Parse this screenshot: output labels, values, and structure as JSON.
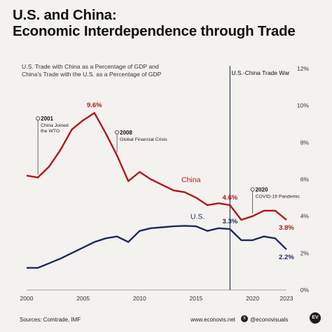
{
  "title_line1": "U.S. and China:",
  "title_line2": "Economic Interdependence through Trade",
  "subtitle_line1": "U.S. Trade with China as a Percentage of GDP and",
  "subtitle_line2": "China's Trade with the U.S. as a Percentage of GDP",
  "footer": {
    "source": "Sources: Comtrade, IMF",
    "site": "www.econovis.net",
    "social": "@econovisuals",
    "x_icon": "X",
    "logo": "EV"
  },
  "chart_data": {
    "type": "line",
    "x": [
      2000,
      2001,
      2002,
      2003,
      2004,
      2005,
      2006,
      2007,
      2008,
      2009,
      2010,
      2011,
      2012,
      2013,
      2014,
      2015,
      2016,
      2017,
      2018,
      2019,
      2020,
      2021,
      2022,
      2023
    ],
    "series": [
      {
        "name": "China",
        "color": "#b3141c",
        "values": [
          6.2,
          6.1,
          6.7,
          7.6,
          8.7,
          9.2,
          9.6,
          8.5,
          7.3,
          5.9,
          6.4,
          6.0,
          5.7,
          5.4,
          5.3,
          5.0,
          4.6,
          4.7,
          4.6,
          3.8,
          4.0,
          4.3,
          4.3,
          3.8
        ]
      },
      {
        "name": "U.S.",
        "color": "#1a2a5e",
        "values": [
          1.2,
          1.2,
          1.45,
          1.7,
          2.0,
          2.3,
          2.6,
          2.8,
          2.9,
          2.6,
          3.2,
          3.35,
          3.4,
          3.45,
          3.48,
          3.45,
          3.2,
          3.35,
          3.3,
          2.7,
          2.7,
          2.9,
          2.8,
          2.2
        ]
      }
    ],
    "ylim": [
      0,
      12
    ],
    "yticks": [
      "0%",
      "2%",
      "4%",
      "6%",
      "8%",
      "10%",
      "12%"
    ],
    "xticks": [
      "2000",
      "2005",
      "2010",
      "2015",
      "2020",
      "2023"
    ],
    "xtick_values": [
      2000,
      2005,
      2010,
      2015,
      2020,
      2023
    ],
    "grid": false,
    "trade_war_label": "U.S.-China Trade War",
    "trade_war_year": 2018,
    "value_labels": [
      {
        "series": 0,
        "year": 2006,
        "text": "9.6%"
      },
      {
        "series": 0,
        "year": 2018,
        "text": "4.6%"
      },
      {
        "series": 0,
        "year": 2023,
        "text": "3.8%"
      },
      {
        "series": 1,
        "year": 2018,
        "text": "3.3%"
      },
      {
        "series": 1,
        "year": 2023,
        "text": "2.2%"
      }
    ],
    "series_labels": [
      {
        "series": 0,
        "text": "China"
      },
      {
        "series": 1,
        "text": "U.S."
      }
    ],
    "annotations": [
      {
        "year": 2001,
        "value": 9.3,
        "label": "2001",
        "desc1": "China Joined",
        "desc2": "the WTO"
      },
      {
        "year": 2008,
        "value": 8.55,
        "label": "2008",
        "desc1": "Global Financial Crisis",
        "desc2": ""
      },
      {
        "year": 2020,
        "value": 5.45,
        "label": "2020",
        "desc1": "COVID-19 Pandemic",
        "desc2": ""
      }
    ]
  }
}
